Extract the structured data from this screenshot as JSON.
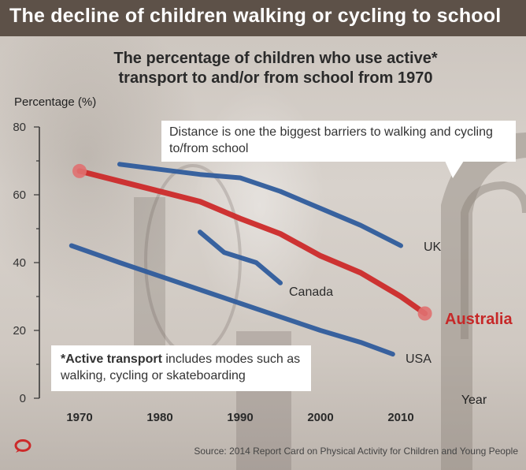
{
  "banner": {
    "title": "The decline of children walking or cycling to school"
  },
  "chart_data": {
    "type": "line",
    "title": "The percentage of children who use active* transport to and/or from school from 1970",
    "ylabel": "Percentage (%)",
    "xlabel": "Year",
    "ylim": [
      0,
      80
    ],
    "xlim": [
      1965,
      2015
    ],
    "y_ticks": [
      "0",
      "20",
      "40",
      "60",
      "80"
    ],
    "x_ticks": [
      "1970",
      "1980",
      "1990",
      "2000",
      "2010"
    ],
    "series": [
      {
        "name": "Australia",
        "color": "#cc2a2a",
        "x": [
          1970,
          1975,
          1980,
          1985,
          1990,
          1995,
          2000,
          2005,
          2010,
          2013
        ],
        "values": [
          67,
          64,
          61,
          58,
          53,
          48.5,
          42,
          37,
          30,
          25
        ]
      },
      {
        "name": "UK",
        "color": "#2f5c9c",
        "x": [
          1975,
          1980,
          1985,
          1990,
          1995,
          2000,
          2005,
          2010
        ],
        "values": [
          69,
          67.5,
          66,
          65,
          61,
          56,
          51,
          45
        ]
      },
      {
        "name": "Canada",
        "color": "#2f5c9c",
        "x": [
          1985,
          1988,
          1992,
          1995
        ],
        "values": [
          49,
          43,
          40,
          34
        ]
      },
      {
        "name": "USA",
        "color": "#2f5c9c",
        "x": [
          1969,
          1975,
          1980,
          1985,
          1990,
          1995,
          2000,
          2005,
          2009
        ],
        "values": [
          45,
          40,
          36,
          32,
          28,
          24,
          20,
          16.5,
          13
        ]
      }
    ],
    "annotations": [
      "Distance is one the biggest barriers to walking and cycling to/from school"
    ]
  },
  "notes": {
    "distance": "Distance is one the biggest barriers to walking and cycling to/from school",
    "active_term": "*Active transport",
    "active_rest": " includes modes such as walking, cycling or skateboarding"
  },
  "source": "Source: 2014 Report Card on Physical Activity for Children and Young People"
}
